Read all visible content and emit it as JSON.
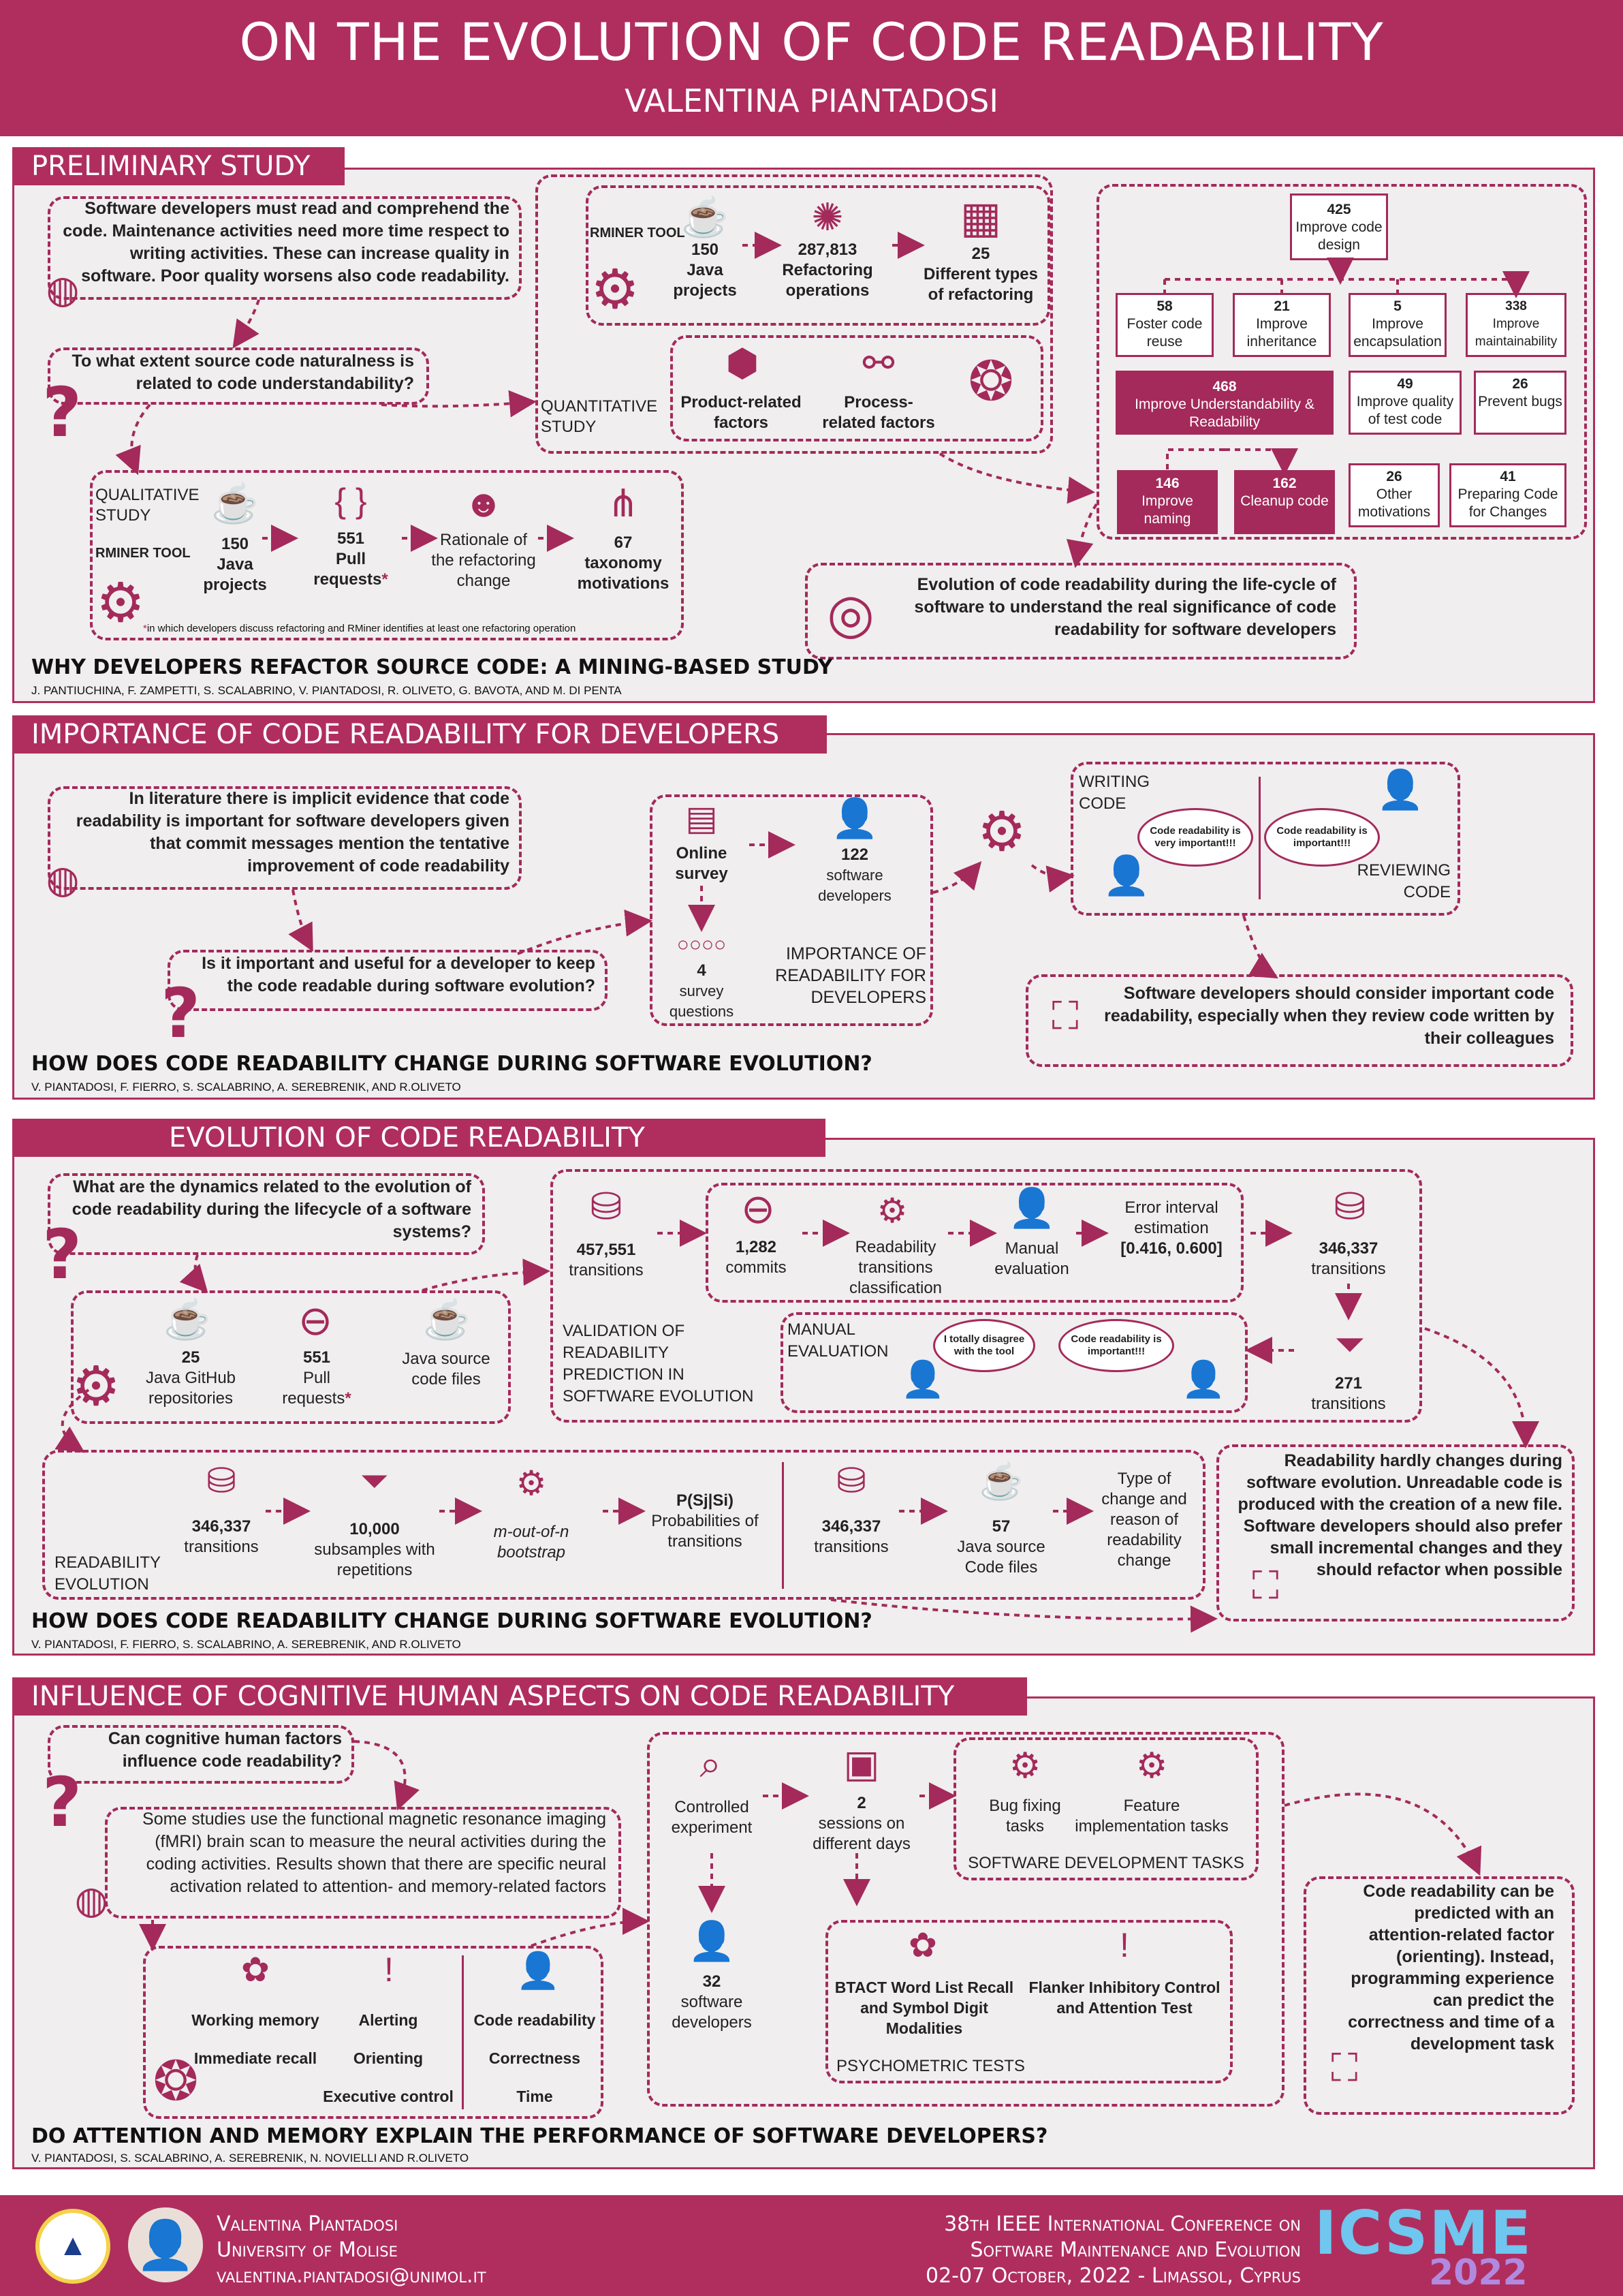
{
  "header": {
    "title": "ON THE EVOLUTION OF CODE READABILITY",
    "author": "VALENTINA PIANTADOSI"
  },
  "s1": {
    "title": "PRELIMINARY STUDY",
    "intro": "Software developers must read and comprehend the code. Maintenance activities need more time respect to writing activities. These can increase quality in software. Poor quality worsens also code readability.",
    "question": "To what extent source code naturalness is related to code understandability?",
    "rminer": "RMINER TOOL",
    "qn_projects": "150",
    "qn_projects_l": "Java projects",
    "qn_ref": "287,813",
    "qn_ref_l": "Refactoring operations",
    "qn_types": "25",
    "qn_types_l": "Different types of refactoring",
    "quant": "QUANTITATIVE STUDY",
    "product": "Product-related factors",
    "process": "Process-related factors",
    "qual": "QUALITATIVE STUDY",
    "ql_projects": "150",
    "ql_projects_l": "Java projects",
    "ql_pr": "551",
    "ql_pr_l": "Pull requests",
    "ql_rat": "Rationale of the refactoring change",
    "ql_tax": "67",
    "ql_tax_l": "taxonomy motivations",
    "footnote": "in which developers discuss refactoring and RMiner identifies at least one refactoring operation",
    "tree": {
      "root_n": "425",
      "root_l": "Improve code design",
      "l1": [
        {
          "n": "58",
          "l": "Foster code reuse"
        },
        {
          "n": "21",
          "l": "Improve inheritance"
        },
        {
          "n": "5",
          "l": "Improve encapsulation"
        },
        {
          "n": "338",
          "l": "Improve maintainability"
        }
      ],
      "und_n": "468",
      "und_l": "Improve Understandability & Readability",
      "tq_n": "49",
      "tq_l": "Improve quality of test code",
      "pb_n": "26",
      "pb_l": "Prevent bugs",
      "nm_n": "146",
      "nm_l": "Improve naming",
      "cc_n": "162",
      "cc_l": "Cleanup code",
      "om_n": "26",
      "om_l": "Other motivations",
      "pc_n": "41",
      "pc_l": "Preparing Code for Changes"
    },
    "conclusion": "Evolution of code readability during the life-cycle of software to understand the real significance of code readability for software developers",
    "paper": "WHY DEVELOPERS REFACTOR SOURCE CODE: A MINING-BASED STUDY",
    "authors": "J. PANTIUCHINA, F. ZAMPETTI, S. SCALABRINO, V. PIANTADOSI, R. OLIVETO, G. BAVOTA, AND M. DI PENTA"
  },
  "s2": {
    "title": "IMPORTANCE OF CODE READABILITY FOR DEVELOPERS",
    "intro": "In literature there is implicit evidence that code readability is important for software developers given that commit messages mention the tentative improvement of code readability",
    "question": "Is it important and useful for a developer to keep the code readable during software evolution?",
    "survey": "Online survey",
    "devs_n": "122",
    "devs_l": "software developers",
    "q_n": "4",
    "q_l": "survey questions",
    "importance": "IMPORTANCE OF READABILITY FOR DEVELOPERS",
    "writing": "WRITING CODE",
    "reviewing": "REVIEWING CODE",
    "bub1": "Code readability is very important!!!",
    "bub2": "Code readability is important!!!",
    "conclusion": "Software developers should consider important code readability, especially when they review code written by their colleagues",
    "paper": "HOW DOES CODE READABILITY CHANGE DURING SOFTWARE EVOLUTION?",
    "authors": "V. PIANTADOSI, F. FIERRO, S. SCALABRINO, A. SEREBRENIK, AND R.OLIVETO"
  },
  "s3": {
    "title": "EVOLUTION OF CODE READABILITY",
    "question": "What are the dynamics related to the evolution of code readability during the lifecycle of a software systems?",
    "repos_n": "25",
    "repos_l": "Java GitHub repositories",
    "pr_n": "551",
    "pr_l": "Pull requests",
    "src_l": "Java source code files",
    "trans_n": "457,551",
    "trans_l": "transitions",
    "commits_n": "1,282",
    "commits_l": "commits",
    "rtc": "Readability transitions classification",
    "manual": "Manual evaluation",
    "err_l": "Error interval estimation",
    "err_v": "[0.416, 0.600]",
    "t2_n": "346,337",
    "t2_l": "transitions",
    "t3_n": "271",
    "t3_l": "transitions",
    "validation": "VALIDATION OF READABILITY PREDICTION IN SOFTWARE EVOLUTION",
    "manual_eval": "MANUAL EVALUATION",
    "bub1": "I totally disagree with the tool",
    "bub2": "Code readability is important!!!",
    "re_t_n": "346,337",
    "re_t_l": "transitions",
    "sub_n": "10,000",
    "sub_l": "subsamples with repetitions",
    "boot": "m-out-of-n bootstrap",
    "prob_h": "P(Sj|Si)",
    "prob_l": "Probabilities of transitions",
    "re2_n": "346,337",
    "re2_l": "transitions",
    "jf_n": "57",
    "jf_l": "Java source Code files",
    "type_l": "Type of change and reason of readability change",
    "readevo": "READABILITY EVOLUTION",
    "conclusion": "Readability hardly changes during software evolution. Unreadable code is produced with the creation of a new file. Software developers should also prefer small incremental changes and they should refactor when possible",
    "paper": "HOW DOES CODE READABILITY CHANGE DURING SOFTWARE EVOLUTION?",
    "authors": "V. PIANTADOSI, F. FIERRO, S. SCALABRINO, A. SEREBRENIK, AND R.OLIVETO"
  },
  "s4": {
    "title": "INFLUENCE OF COGNITIVE HUMAN ASPECTS ON CODE READABILITY",
    "question": "Can cognitive human factors influence code readability?",
    "intro": "Some studies use the functional magnetic resonance imaging (fMRI) brain scan to measure the neural activities during the coding activities. Results shown that there are specific neural activation related to attention- and memory-related factors",
    "wm": "Working memory",
    "ir": "Immediate recall",
    "al": "Alerting",
    "or": "Orienting",
    "ec": "Executive control",
    "cr": "Code readability",
    "co": "Correctness",
    "ti": "Time",
    "ce": "Controlled experiment",
    "sess_n": "2",
    "sess_l": "sessions on different days",
    "bug": "Bug fixing tasks",
    "feat": "Feature implementation tasks",
    "sdt": "SOFTWARE DEVELOPMENT TASKS",
    "devs_n": "32",
    "devs_l": "software developers",
    "btact": "BTACT Word List Recall and Symbol Digit Modalities",
    "flanker": "Flanker Inhibitory Control and Attention Test",
    "psy": "PSYCHOMETRIC TESTS",
    "conclusion": "Code readability can be predicted with an attention-related factor (orienting). Instead, programming experience can predict the correctness and time of a development task",
    "paper": "DO ATTENTION AND MEMORY EXPLAIN THE PERFORMANCE OF SOFTWARE DEVELOPERS?",
    "authors": "V. PIANTADOSI, S. SCALABRINO, A. SEREBRENIK, N. NOVIELLI AND R.OLIVETO"
  },
  "footer": {
    "name": "Valentina Piantadosi",
    "uni": "University of Molise",
    "email": "valentina.piantadosi@unimol.it",
    "conf1": "38th IEEE International Conference on",
    "conf2": "Software Maintenance and Evolution",
    "conf3": "02-07 October, 2022 - Limassol, Cyprus",
    "logo1": "ICSME",
    "logo2": "2022"
  },
  "colors": {
    "primary": "#b02e5e",
    "panel": "#f0eeef",
    "dark": "#a32a5a"
  }
}
